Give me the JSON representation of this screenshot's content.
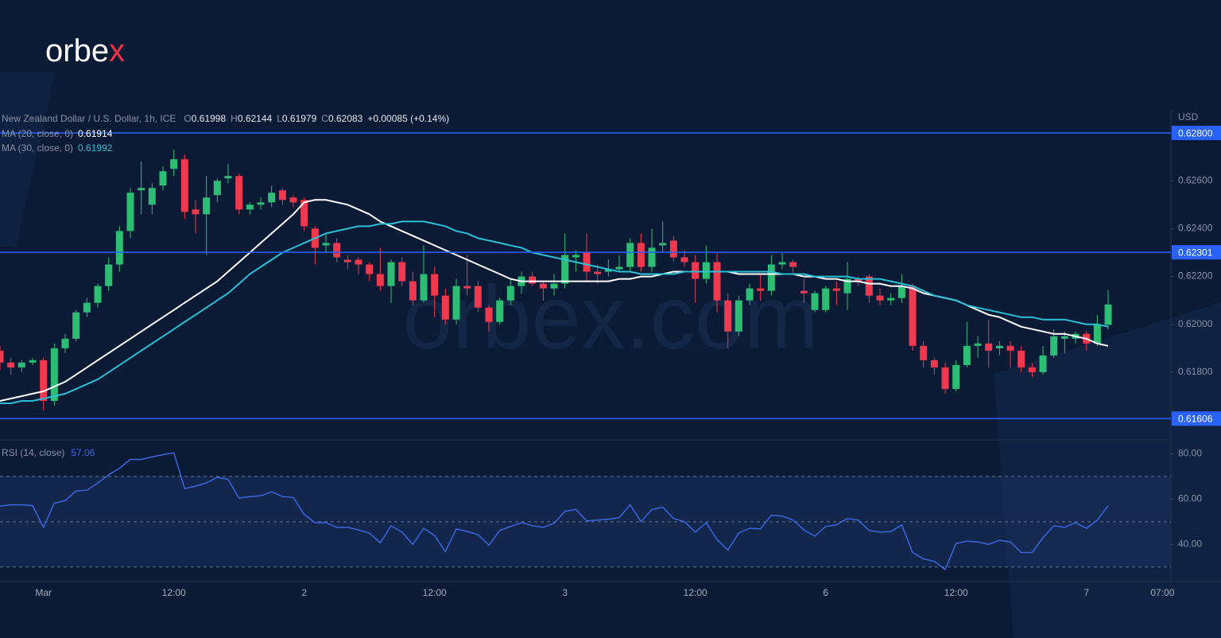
{
  "brand": {
    "text": "orbe",
    "accent": "x"
  },
  "watermark": "orbex.com",
  "chart_data": [
    {
      "type": "candlestick",
      "title": "New Zealand Dollar / U.S. Dollar, 1h, ICE",
      "ohlc": [
        {
          "label": "O",
          "value": 0.61998
        },
        {
          "label": "H",
          "value": 0.62144
        },
        {
          "label": "L",
          "value": 0.61979
        },
        {
          "label": "C",
          "value": 0.62083
        }
      ],
      "change": "+0.00085 (+0.14%)",
      "axis_label": "USD",
      "up_color": "#2ebd75",
      "down_color": "#f0394e",
      "categories": [
        null,
        null,
        null,
        null,
        "Mar",
        null,
        null,
        null,
        null,
        null,
        null,
        null,
        null,
        null,
        null,
        null,
        "12:00",
        null,
        null,
        null,
        null,
        null,
        null,
        null,
        null,
        null,
        null,
        null,
        "2",
        null,
        null,
        null,
        null,
        null,
        null,
        null,
        null,
        null,
        null,
        null,
        "12:00",
        null,
        null,
        null,
        null,
        null,
        null,
        null,
        null,
        null,
        null,
        null,
        "3",
        null,
        null,
        null,
        null,
        null,
        null,
        null,
        null,
        null,
        null,
        null,
        "12:00",
        null,
        null,
        null,
        null,
        null,
        null,
        null,
        null,
        null,
        null,
        null,
        "6",
        null,
        null,
        null,
        null,
        null,
        null,
        null,
        null,
        null,
        null,
        null,
        "12:00",
        null,
        null,
        null,
        null,
        null,
        null,
        null,
        null,
        null,
        null,
        null,
        "7",
        null,
        null,
        null,
        null,
        null,
        null,
        "07:00"
      ],
      "open": [
        0.6189,
        0.6184,
        0.6182,
        0.6184,
        0.6185,
        0.6168,
        0.619,
        0.6194,
        0.6205,
        0.6209,
        0.6216,
        0.6225,
        0.6239,
        0.6256,
        0.625,
        0.6258,
        0.6265,
        0.6269,
        0.6248,
        0.6246,
        0.6254,
        0.6261,
        0.6262,
        0.6248,
        0.625,
        0.6251,
        0.6256,
        0.6253,
        0.6252,
        0.624,
        0.6233,
        0.6234,
        0.6227,
        0.6227,
        0.6225,
        0.6221,
        0.6216,
        0.6226,
        0.6218,
        0.621,
        0.6221,
        0.6212,
        0.6202,
        0.6216,
        0.6216,
        0.6207,
        0.6201,
        0.621,
        0.6216,
        0.622,
        0.6217,
        0.6215,
        0.6217,
        0.6228,
        0.623,
        0.6222,
        0.6222,
        0.6223,
        0.6224,
        0.6234,
        0.6224,
        0.6233,
        0.6235,
        0.6228,
        0.6226,
        0.6219,
        0.6226,
        0.621,
        0.6197,
        0.621,
        0.6215,
        0.6214,
        0.6225,
        0.6226,
        0.6214,
        0.6206,
        0.6206,
        0.6215,
        0.6213,
        0.6219,
        0.622,
        0.6212,
        0.621,
        0.6211,
        0.6216,
        0.6191,
        0.6185,
        0.6182,
        0.6173,
        0.6183,
        0.6191,
        0.6192,
        0.619,
        0.6191,
        0.6189,
        0.6182,
        0.618,
        0.6187,
        0.6194,
        0.6194,
        0.6196,
        0.6192,
        0.61998,
        null,
        null,
        null,
        null,
        null
      ],
      "high": [
        0.6191,
        0.6186,
        0.6185,
        0.6186,
        0.6186,
        0.6192,
        0.6196,
        0.6206,
        0.6211,
        0.6217,
        0.6228,
        0.6241,
        0.6257,
        0.6268,
        0.6259,
        0.6266,
        0.6273,
        0.6271,
        0.6252,
        0.6262,
        0.6261,
        0.6267,
        0.6263,
        0.6251,
        0.6253,
        0.6258,
        0.6257,
        0.6254,
        0.6253,
        0.6241,
        0.6238,
        0.6236,
        0.6229,
        0.6228,
        0.6226,
        0.6232,
        0.6227,
        0.6228,
        0.6222,
        0.6233,
        0.6224,
        0.6215,
        0.6219,
        0.6229,
        0.6218,
        0.6208,
        0.6211,
        0.6219,
        0.6222,
        0.6222,
        0.6218,
        0.6221,
        0.6238,
        0.6231,
        0.6238,
        0.6225,
        0.6227,
        0.6229,
        0.6236,
        0.6238,
        0.624,
        0.6243,
        0.6237,
        0.6231,
        0.6229,
        0.6233,
        0.623,
        0.6213,
        0.6212,
        0.6217,
        0.6221,
        0.6229,
        0.623,
        0.6227,
        0.6219,
        0.6214,
        0.6216,
        0.6218,
        0.6226,
        0.622,
        0.6221,
        0.6215,
        0.6213,
        0.6221,
        0.6217,
        0.6193,
        0.6186,
        0.6184,
        0.6185,
        0.6201,
        0.6195,
        0.6202,
        0.6193,
        0.6193,
        0.6191,
        0.6184,
        0.6191,
        0.6198,
        0.6197,
        0.6197,
        0.6197,
        0.6204,
        0.62144,
        null,
        null,
        null,
        null,
        null
      ],
      "low": [
        0.6181,
        0.6179,
        0.618,
        0.6183,
        0.6164,
        0.6166,
        0.6188,
        0.6193,
        0.6203,
        0.6207,
        0.6214,
        0.6222,
        0.6236,
        0.6246,
        0.6246,
        0.6256,
        0.6262,
        0.6244,
        0.6238,
        0.6229,
        0.6251,
        0.6259,
        0.6246,
        0.6246,
        0.6248,
        0.6249,
        0.625,
        0.6249,
        0.6239,
        0.6225,
        0.623,
        0.6226,
        0.6223,
        0.6221,
        0.6218,
        0.6214,
        0.6209,
        0.6216,
        0.6208,
        0.6209,
        0.6203,
        0.62,
        0.62,
        0.6212,
        0.6205,
        0.6197,
        0.62,
        0.6208,
        0.6213,
        0.6216,
        0.621,
        0.6212,
        0.6215,
        0.6222,
        0.6218,
        0.6217,
        0.622,
        0.6222,
        0.6222,
        0.6222,
        0.6222,
        0.623,
        0.6226,
        0.6224,
        0.6209,
        0.6217,
        0.6205,
        0.619,
        0.6195,
        0.6208,
        0.621,
        0.6212,
        0.6223,
        0.6221,
        0.6209,
        0.6205,
        0.6205,
        0.6208,
        0.6206,
        0.6216,
        0.6209,
        0.6208,
        0.6208,
        0.6209,
        0.6189,
        0.6182,
        0.6179,
        0.6171,
        0.6172,
        0.6182,
        0.6186,
        0.6182,
        0.6187,
        0.6182,
        0.618,
        0.6178,
        0.6179,
        0.6186,
        0.6188,
        0.6192,
        0.6189,
        0.6191,
        0.61979,
        null,
        null,
        null,
        null,
        null
      ],
      "close": [
        0.6184,
        0.6182,
        0.6184,
        0.6185,
        0.6168,
        0.619,
        0.6194,
        0.6205,
        0.6209,
        0.6216,
        0.6225,
        0.6239,
        0.6255,
        0.6257,
        0.6257,
        0.6264,
        0.6269,
        0.6247,
        0.6246,
        0.6253,
        0.626,
        0.6262,
        0.6248,
        0.625,
        0.6251,
        0.6255,
        0.6252,
        0.6251,
        0.6241,
        0.6232,
        0.6234,
        0.6228,
        0.6226,
        0.6225,
        0.6221,
        0.6216,
        0.6226,
        0.6218,
        0.621,
        0.6221,
        0.6212,
        0.6202,
        0.6216,
        0.6215,
        0.6207,
        0.6201,
        0.621,
        0.6216,
        0.622,
        0.6217,
        0.6215,
        0.6217,
        0.6229,
        0.6229,
        0.6222,
        0.6221,
        0.6223,
        0.6224,
        0.6234,
        0.6224,
        0.6232,
        0.6234,
        0.6228,
        0.6226,
        0.6219,
        0.6226,
        0.621,
        0.6197,
        0.621,
        0.6215,
        0.6214,
        0.6225,
        0.6226,
        0.6224,
        0.6213,
        0.6213,
        0.6215,
        0.6214,
        0.6219,
        0.6218,
        0.6212,
        0.621,
        0.6211,
        0.6216,
        0.6191,
        0.6185,
        0.6182,
        0.6173,
        0.6183,
        0.6191,
        0.6192,
        0.6189,
        0.6191,
        0.6189,
        0.6182,
        0.618,
        0.6187,
        0.6195,
        0.6195,
        0.6196,
        0.6192,
        0.62,
        0.62083,
        null,
        null,
        null,
        null,
        null
      ],
      "series": [
        {
          "name": "MA (20, close, 0)",
          "last": 0.61914,
          "color": "#ffffff",
          "values": [
            0.6168,
            0.6169,
            0.617,
            0.6171,
            0.6172,
            0.6174,
            0.6176,
            0.6179,
            0.6182,
            0.6185,
            0.6188,
            0.6191,
            0.6194,
            0.6197,
            0.62,
            0.6203,
            0.6206,
            0.6209,
            0.6212,
            0.6215,
            0.6218,
            0.6222,
            0.6226,
            0.623,
            0.6234,
            0.6238,
            0.6242,
            0.6246,
            0.6251,
            0.6252,
            0.6252,
            0.6251,
            0.625,
            0.6248,
            0.6246,
            0.6243,
            0.6241,
            0.6239,
            0.6237,
            0.6235,
            0.6233,
            0.6231,
            0.6229,
            0.6227,
            0.6225,
            0.6223,
            0.6221,
            0.6219,
            0.6218,
            0.6218,
            0.6218,
            0.6218,
            0.6218,
            0.6218,
            0.6218,
            0.6218,
            0.6218,
            0.6219,
            0.6219,
            0.622,
            0.622,
            0.6221,
            0.6222,
            0.6222,
            0.6222,
            0.6222,
            0.6222,
            0.6222,
            0.6221,
            0.6221,
            0.6221,
            0.6221,
            0.6221,
            0.6221,
            0.622,
            0.622,
            0.6219,
            0.6219,
            0.6218,
            0.6218,
            0.6217,
            0.6217,
            0.6216,
            0.6216,
            0.6215,
            0.6213,
            0.6212,
            0.6211,
            0.621,
            0.6208,
            0.6206,
            0.6204,
            0.6203,
            0.6201,
            0.6199,
            0.6198,
            0.6197,
            0.6196,
            0.6196,
            0.6195,
            0.6194,
            0.6192,
            0.6191,
            null,
            null,
            null,
            null,
            null
          ]
        },
        {
          "name": "MA (30, close, 0)",
          "last": 0.61992,
          "color": "#2bbfd6",
          "values": [
            0.6167,
            0.6167,
            0.6168,
            0.6168,
            0.6169,
            0.617,
            0.6171,
            0.6173,
            0.6175,
            0.6177,
            0.618,
            0.6183,
            0.6186,
            0.6189,
            0.6192,
            0.6195,
            0.6198,
            0.6201,
            0.6204,
            0.6207,
            0.621,
            0.6213,
            0.6217,
            0.6221,
            0.6224,
            0.6227,
            0.623,
            0.6232,
            0.6234,
            0.6236,
            0.6238,
            0.6239,
            0.624,
            0.6241,
            0.6241,
            0.6242,
            0.6242,
            0.6243,
            0.6243,
            0.6243,
            0.6242,
            0.6241,
            0.6239,
            0.6238,
            0.6236,
            0.6235,
            0.6234,
            0.6233,
            0.6232,
            0.623,
            0.6229,
            0.6228,
            0.6227,
            0.6226,
            0.6225,
            0.6224,
            0.6223,
            0.6222,
            0.6222,
            0.6221,
            0.6221,
            0.6221,
            0.6221,
            0.6222,
            0.6222,
            0.6222,
            0.6222,
            0.6222,
            0.6222,
            0.6222,
            0.6222,
            0.6222,
            0.6221,
            0.6221,
            0.6221,
            0.622,
            0.622,
            0.622,
            0.622,
            0.6219,
            0.6219,
            0.6219,
            0.6218,
            0.6217,
            0.6216,
            0.6214,
            0.6212,
            0.6211,
            0.621,
            0.6208,
            0.6207,
            0.6206,
            0.6205,
            0.6204,
            0.6203,
            0.6203,
            0.6202,
            0.6202,
            0.6202,
            0.6201,
            0.62,
            0.62,
            0.6199,
            null,
            null,
            null,
            null,
            null
          ]
        }
      ],
      "ylim": [
        0.61517,
        0.629
      ],
      "yticks": [
        {
          "value": 0.626,
          "label": "0.62600"
        },
        {
          "value": 0.624,
          "label": "0.62400"
        },
        {
          "value": 0.622,
          "label": "0.62200"
        },
        {
          "value": 0.62,
          "label": "0.62000"
        },
        {
          "value": 0.618,
          "label": "0.61800"
        }
      ],
      "hlines": [
        {
          "value": 0.628,
          "label": "0.62800"
        },
        0.62301,
        0.61606
      ],
      "hline_color": "#2962ff"
    },
    {
      "type": "line",
      "title": "RSI (14, close)",
      "last": 57.06,
      "series": [
        {
          "name": "RSI (14, close)",
          "color": "#3a66e0",
          "values": [
            56.8,
            57.5,
            57.5,
            57.1,
            47.5,
            58.2,
            59.3,
            63.6,
            63.9,
            67.1,
            70.7,
            73.6,
            77.5,
            77.5,
            78.6,
            79.6,
            80.4,
            64.6,
            65.7,
            67.1,
            69.6,
            68.6,
            60.4,
            61.1,
            61.4,
            63.2,
            61.1,
            60.7,
            53.2,
            49.6,
            49.6,
            47.5,
            47.5,
            46.4,
            45.0,
            40.7,
            48.2,
            45.4,
            40.0,
            47.1,
            43.9,
            36.8,
            46.8,
            45.7,
            44.3,
            39.6,
            46.1,
            47.9,
            49.6,
            48.2,
            47.5,
            49.3,
            54.6,
            55.4,
            50.4,
            50.7,
            51.1,
            51.8,
            57.5,
            50.0,
            55.4,
            56.4,
            51.4,
            50.0,
            45.4,
            49.6,
            42.1,
            37.5,
            45.0,
            47.1,
            46.8,
            52.9,
            52.5,
            50.7,
            46.4,
            43.6,
            47.9,
            48.6,
            51.4,
            50.7,
            46.1,
            45.4,
            45.7,
            48.6,
            36.4,
            33.6,
            32.5,
            28.9,
            40.4,
            41.4,
            41.1,
            40.0,
            41.8,
            41.1,
            36.4,
            36.4,
            42.9,
            48.2,
            47.5,
            49.6,
            47.1,
            50.7,
            57.06,
            null,
            null,
            null,
            null,
            null
          ]
        }
      ],
      "ylim": [
        23.6,
        86.1
      ],
      "yticks": [
        {
          "value": 80,
          "label": "80.00"
        },
        {
          "value": 60,
          "label": "60.00"
        },
        {
          "value": 40,
          "label": "40.00"
        }
      ],
      "levels": [
        70,
        50,
        30
      ]
    }
  ]
}
